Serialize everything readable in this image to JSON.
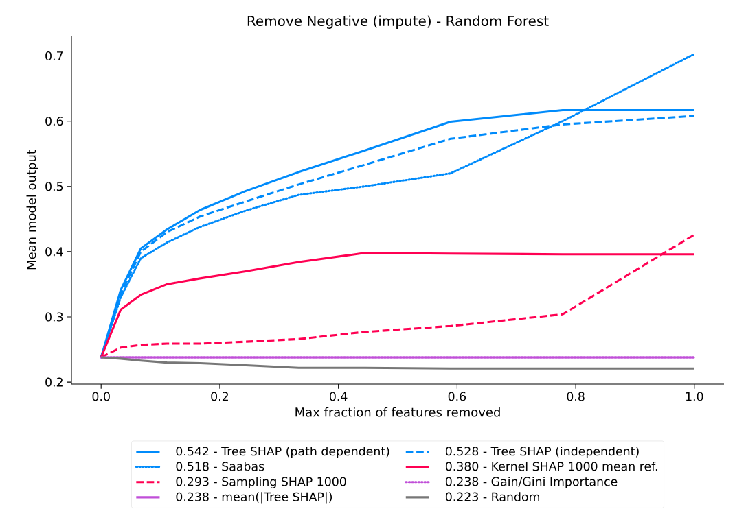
{
  "chart_data": {
    "type": "line",
    "title": "Remove Negative (impute) - Random Forest",
    "xlabel": "Max fraction of features removed",
    "ylabel": "Mean model output",
    "x": [
      0,
      0.033,
      0.067,
      0.111,
      0.167,
      0.244,
      0.333,
      0.444,
      0.589,
      0.778,
      1.0
    ],
    "xlim": [
      -0.05,
      1.05
    ],
    "ylim": [
      0.197,
      0.731
    ],
    "xticks": [
      {
        "value": 0,
        "label": "0.0"
      },
      0.2,
      0.4,
      0.6,
      0.8,
      {
        "value": 1,
        "label": "1.0"
      }
    ],
    "yticks": [
      0.2,
      0.3,
      0.4,
      0.5,
      0.6,
      0.7
    ],
    "legend": "bottom",
    "grid": false,
    "series": [
      {
        "name": "0.542 - Tree SHAP (path dependent)",
        "color": "#008bfb",
        "line_style": "solid",
        "values": [
          0.238,
          0.341,
          0.405,
          0.434,
          0.464,
          0.493,
          0.522,
          0.555,
          0.599,
          0.617,
          0.617
        ]
      },
      {
        "name": "0.528 - Tree SHAP (independent)",
        "color": "#008bfb",
        "line_style": "dashed",
        "values": [
          0.238,
          0.335,
          0.4,
          0.43,
          0.454,
          0.477,
          0.503,
          0.533,
          0.573,
          0.595,
          0.608
        ]
      },
      {
        "name": "0.518 - Saabas",
        "color": "#008bfb",
        "line_style": "dotted",
        "values": [
          0.238,
          0.33,
          0.39,
          0.414,
          0.438,
          0.463,
          0.487,
          0.5,
          0.52,
          0.6,
          0.703
        ]
      },
      {
        "name": "0.380 - Kernel SHAP 1000 mean ref.",
        "color": "#ff0052",
        "line_style": "solid",
        "values": [
          0.238,
          0.311,
          0.334,
          0.35,
          0.359,
          0.37,
          0.384,
          0.398,
          0.397,
          0.396,
          0.396
        ]
      },
      {
        "name": "0.293 - Sampling SHAP 1000",
        "color": "#ff0052",
        "line_style": "dashed",
        "values": [
          0.238,
          0.253,
          0.257,
          0.259,
          0.259,
          0.262,
          0.266,
          0.277,
          0.286,
          0.304,
          0.426
        ]
      },
      {
        "name": "0.238 - Gain/Gini Importance",
        "color": "#c04fd8",
        "line_style": "dotted",
        "values": [
          0.238,
          0.238,
          0.238,
          0.238,
          0.238,
          0.238,
          0.238,
          0.238,
          0.238,
          0.238,
          0.238
        ]
      },
      {
        "name": "0.238 - mean(|Tree SHAP|)",
        "color": "#c04fd8",
        "line_style": "solid",
        "values": [
          0.238,
          0.238,
          0.238,
          0.238,
          0.238,
          0.238,
          0.238,
          0.238,
          0.238,
          0.238,
          0.238
        ]
      },
      {
        "name": "0.223 - Random",
        "color": "#777777",
        "line_style": "solid",
        "values": [
          0.238,
          0.236,
          0.233,
          0.23,
          0.229,
          0.226,
          0.222,
          0.222,
          0.221,
          0.221,
          0.221
        ]
      }
    ]
  }
}
